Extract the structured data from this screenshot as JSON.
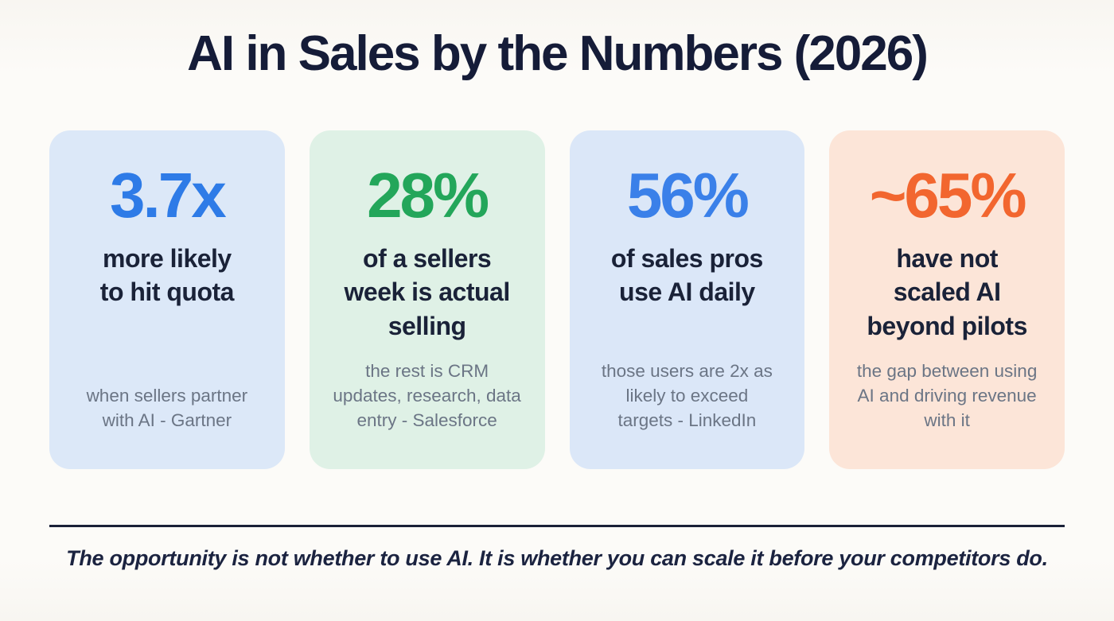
{
  "page": {
    "title": "AI in Sales by the Numbers (2026)",
    "footer_quote": "The opportunity is not whether to use AI. It is whether you can scale it before your competitors do.",
    "background_color": "#faf8f4",
    "title_color": "#151c38",
    "headline_color": "#1a2238",
    "detail_color": "#6b7585",
    "divider_color": "#1a2138"
  },
  "cards": [
    {
      "value": "3.7x",
      "headline": "more likely\nto hit quota",
      "detail": "when sellers partner\nwith AI - Gartner",
      "accent_color": "#2e7be7",
      "bg_color": "#dce8f8"
    },
    {
      "value": "28%",
      "headline": "of a sellers\nweek is actual\nselling",
      "detail": "the rest is CRM\nupdates, research, data\nentry - Salesforce",
      "accent_color": "#23a65a",
      "bg_color": "#dff1e6"
    },
    {
      "value": "56%",
      "headline": "of sales pros\nuse AI daily",
      "detail": "those users are 2x as\nlikely to exceed\ntargets - LinkedIn",
      "accent_color": "#3a80e9",
      "bg_color": "#dbe7f8"
    },
    {
      "value": "~65%",
      "headline": "have not\nscaled AI\nbeyond pilots",
      "detail": "the gap between using\nAI and driving revenue\nwith it",
      "accent_color": "#f2662f",
      "bg_color": "#fce5d8"
    }
  ]
}
